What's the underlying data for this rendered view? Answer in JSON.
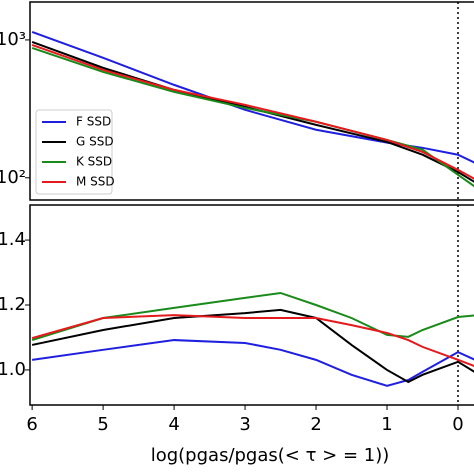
{
  "chart_data": [
    {
      "type": "line",
      "log_y": true,
      "legend": "lower left",
      "vline": 0,
      "xlim": [
        6.03,
        -0.31
      ],
      "ylim": [
        69,
        1884
      ],
      "yticks": [
        {
          "value": 1000,
          "label": "10³"
        },
        {
          "value": 100,
          "label": "10²"
        }
      ],
      "x": [
        6,
        5,
        4,
        3,
        2,
        1,
        0.5,
        0,
        -0.3
      ],
      "series": [
        {
          "name": "F SSD",
          "color": "#1f1fe0",
          "values": [
            1142,
            741,
            472,
            311,
            223,
            180,
            165,
            147,
            124
          ]
        },
        {
          "name": "G SSD",
          "color": "#000000",
          "values": [
            967,
            627,
            434,
            327,
            242,
            182,
            147,
            110,
            89
          ]
        },
        {
          "name": "K SSD",
          "color": "#1a8a1a",
          "values": [
            875,
            586,
            420,
            321,
            255,
            188,
            160,
            105,
            82
          ]
        },
        {
          "name": "M SSD",
          "color": "#e41a1c",
          "values": [
            920,
            606,
            434,
            338,
            255,
            188,
            154,
            114,
            94
          ]
        }
      ]
    },
    {
      "type": "line",
      "vline": 0,
      "xlabel": "log(pgas/pgas(< τ > = 1))",
      "xlim": [
        6.03,
        -0.31
      ],
      "ylim": [
        0.892,
        1.508
      ],
      "xticks": [
        6,
        5,
        4,
        3,
        2,
        1,
        0
      ],
      "yticks": [
        {
          "value": 1.4,
          "label": "1.4"
        },
        {
          "value": 1.2,
          "label": "1.2"
        },
        {
          "value": 1.0,
          "label": "1.0"
        }
      ],
      "x": [
        6,
        5,
        4,
        3,
        2.5,
        2,
        1.5,
        1,
        0.7,
        0.5,
        0,
        -0.3
      ],
      "series": [
        {
          "color": "#1f1fe0",
          "values": [
            1.031,
            1.062,
            1.092,
            1.083,
            1.062,
            1.031,
            0.985,
            0.951,
            0.969,
            0.994,
            1.055,
            1.025
          ]
        },
        {
          "color": "#000000",
          "values": [
            1.077,
            1.123,
            1.16,
            1.175,
            1.185,
            1.16,
            1.077,
            1.0,
            0.963,
            0.985,
            1.025,
            0.985
          ]
        },
        {
          "color": "#1a8a1a",
          "values": [
            1.092,
            1.16,
            1.191,
            1.222,
            1.237,
            1.2,
            1.16,
            1.108,
            1.102,
            1.123,
            1.163,
            1.169
          ]
        },
        {
          "color": "#e41a1c",
          "values": [
            1.098,
            1.16,
            1.169,
            1.16,
            1.16,
            1.16,
            1.138,
            1.114,
            1.092,
            1.071,
            1.031,
            1.006
          ]
        }
      ]
    }
  ]
}
